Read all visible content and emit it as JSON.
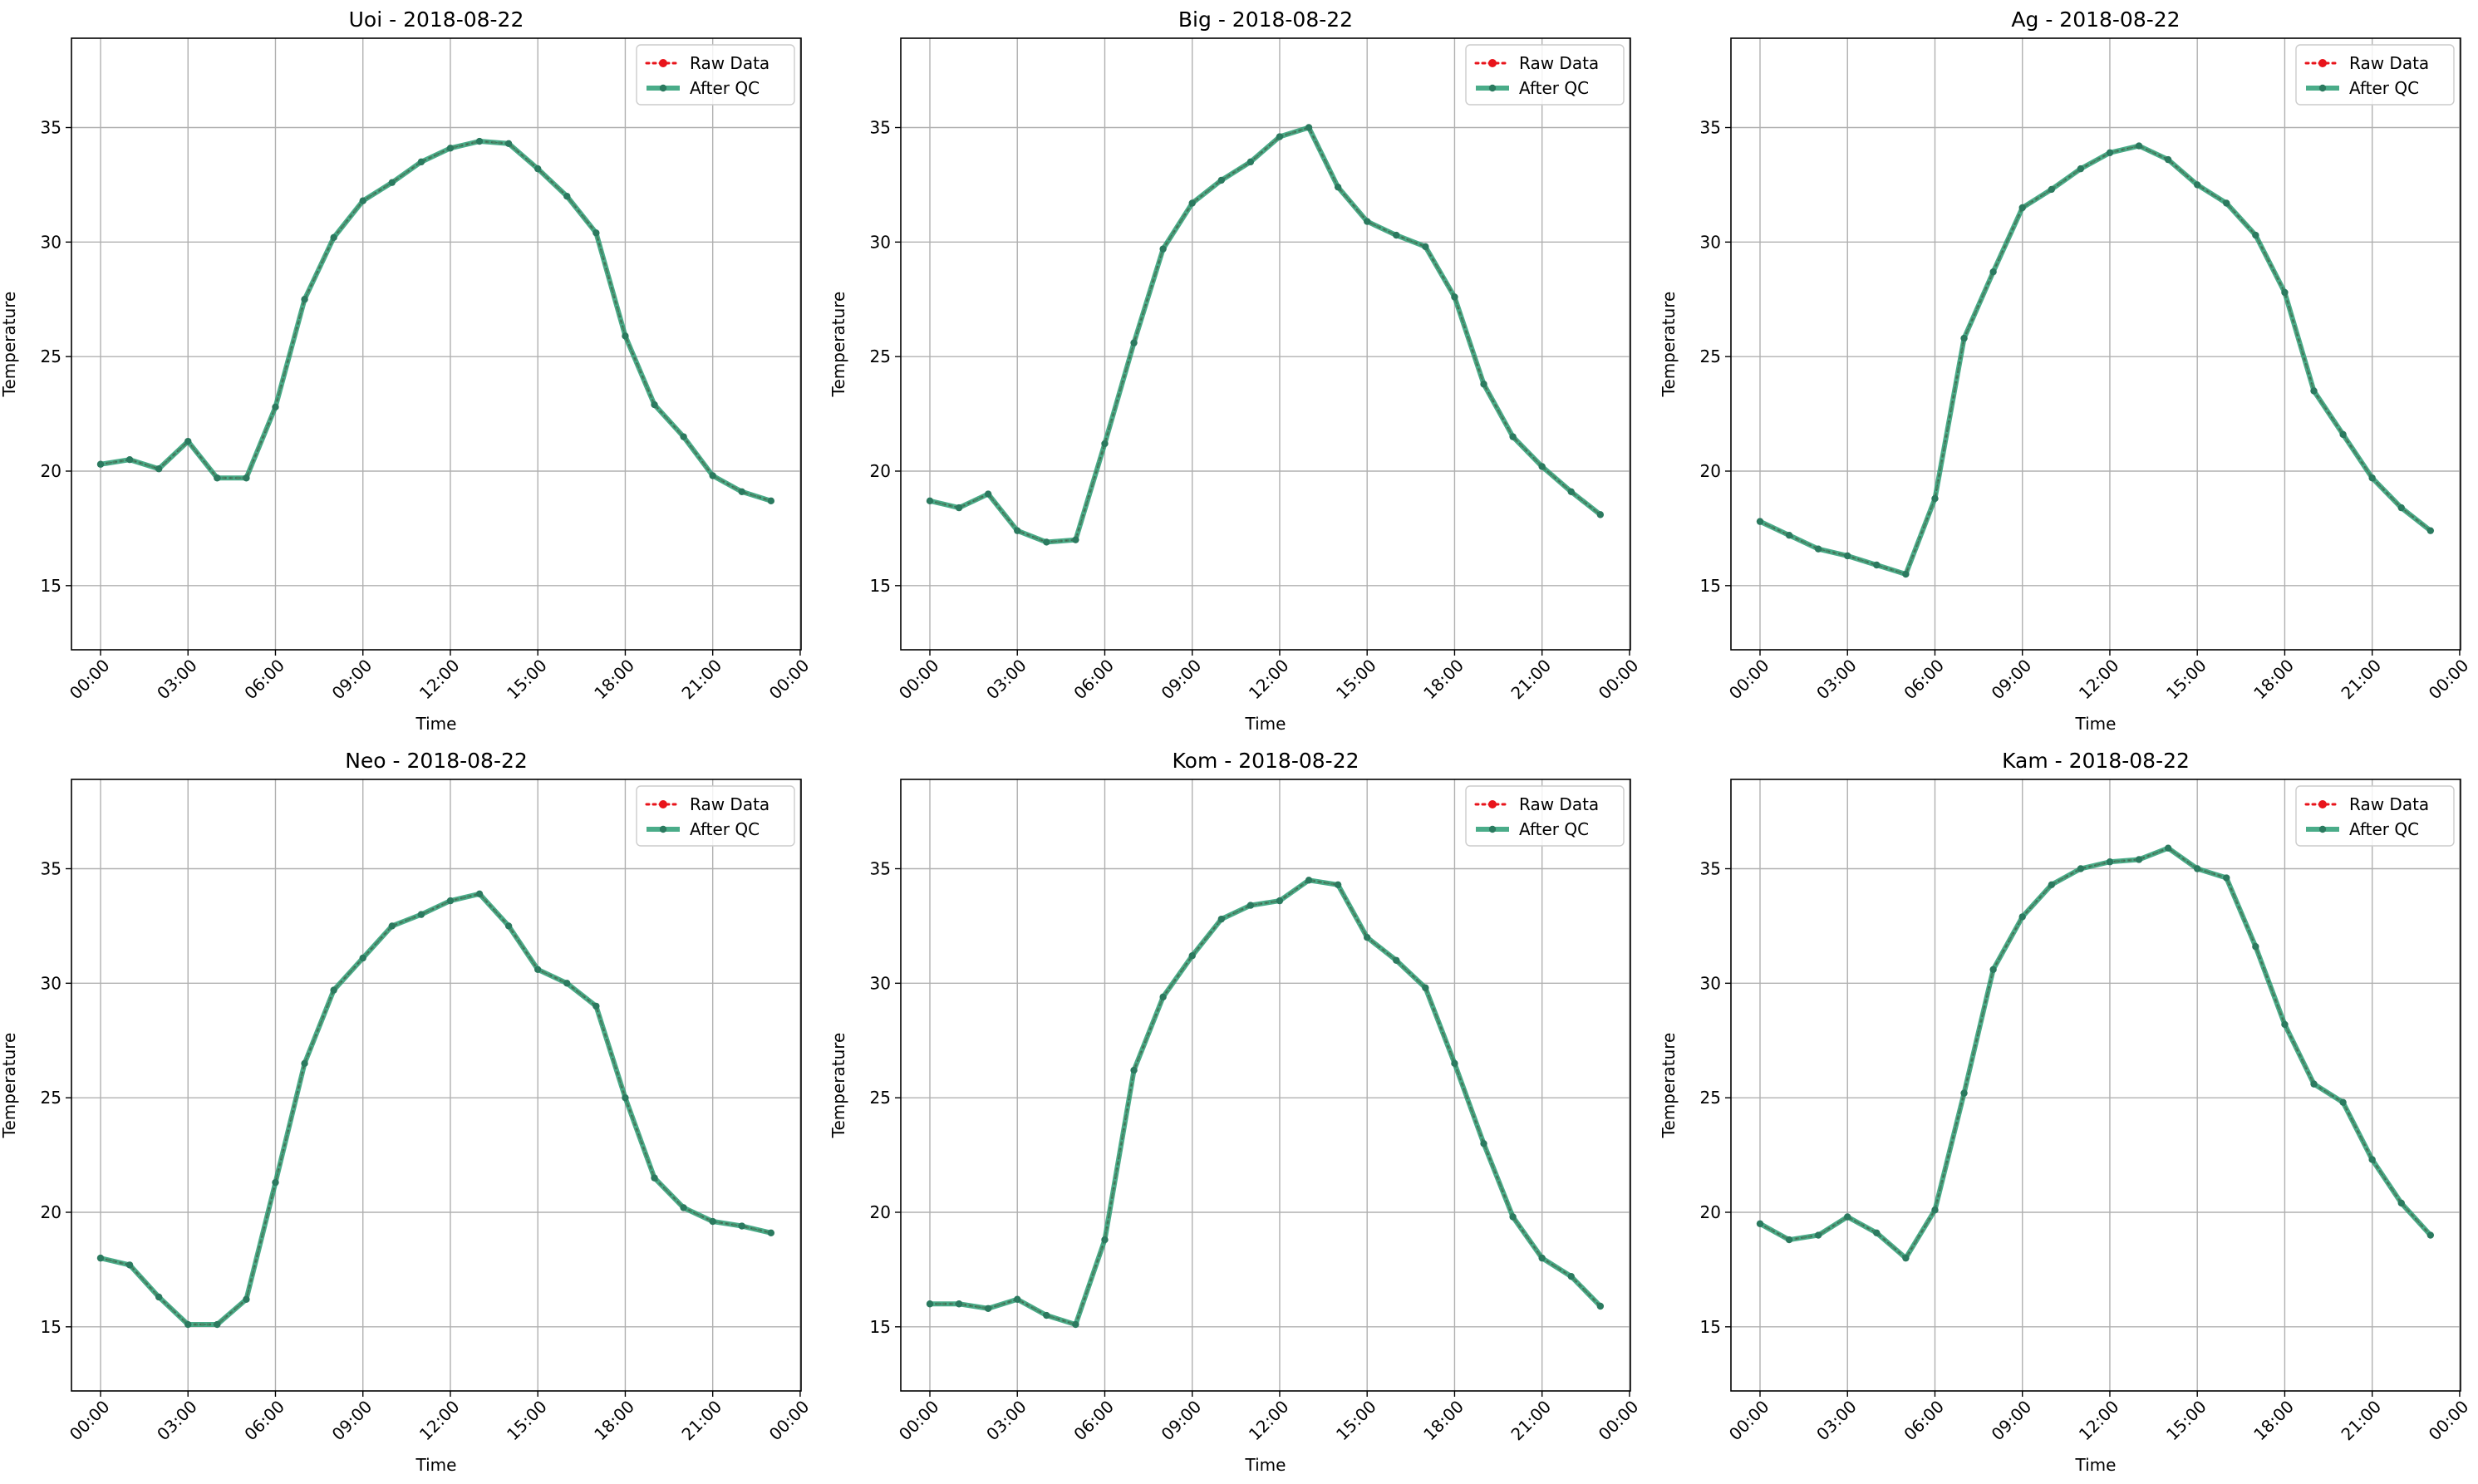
{
  "figure": {
    "legend_labels": [
      "Raw Data",
      "After QC"
    ]
  },
  "colors": {
    "raw": "#e8141b",
    "qc": "#2a9d74",
    "grid": "#b0b0b0"
  },
  "chart_data": [
    {
      "type": "line",
      "title": "Uoi - 2018-08-22",
      "xlabel": "Time",
      "ylabel": "Temperature",
      "x": [
        "00:00",
        "01:00",
        "02:00",
        "03:00",
        "04:00",
        "05:00",
        "06:00",
        "07:00",
        "08:00",
        "09:00",
        "10:00",
        "11:00",
        "12:00",
        "13:00",
        "14:00",
        "15:00",
        "16:00",
        "17:00",
        "18:00",
        "19:00",
        "20:00",
        "21:00",
        "22:00",
        "23:00"
      ],
      "xticks": [
        "00:00",
        "03:00",
        "06:00",
        "09:00",
        "12:00",
        "15:00",
        "18:00",
        "21:00",
        "00:00"
      ],
      "yticks": [
        15,
        20,
        25,
        30,
        35
      ],
      "ylim": [
        12.2,
        38.9
      ],
      "grid": true,
      "legend_position": "top-right",
      "series": [
        {
          "name": "Raw Data",
          "values": [
            20.3,
            20.5,
            20.1,
            21.3,
            19.7,
            19.7,
            22.8,
            27.5,
            30.2,
            31.8,
            32.6,
            33.5,
            34.1,
            34.4,
            34.3,
            33.2,
            32.0,
            30.4,
            25.9,
            22.9,
            21.5,
            19.8,
            19.1,
            18.7
          ]
        },
        {
          "name": "After QC",
          "values": [
            20.3,
            20.5,
            20.1,
            21.3,
            19.7,
            19.7,
            22.8,
            27.5,
            30.2,
            31.8,
            32.6,
            33.5,
            34.1,
            34.4,
            34.3,
            33.2,
            32.0,
            30.4,
            25.9,
            22.9,
            21.5,
            19.8,
            19.1,
            18.7
          ]
        }
      ]
    },
    {
      "type": "line",
      "title": "Big - 2018-08-22",
      "xlabel": "Time",
      "ylabel": "Temperature",
      "x": [
        "00:00",
        "01:00",
        "02:00",
        "03:00",
        "04:00",
        "05:00",
        "06:00",
        "07:00",
        "08:00",
        "09:00",
        "10:00",
        "11:00",
        "12:00",
        "13:00",
        "14:00",
        "15:00",
        "16:00",
        "17:00",
        "18:00",
        "19:00",
        "20:00",
        "21:00",
        "22:00",
        "23:00"
      ],
      "xticks": [
        "00:00",
        "03:00",
        "06:00",
        "09:00",
        "12:00",
        "15:00",
        "18:00",
        "21:00",
        "00:00"
      ],
      "yticks": [
        15,
        20,
        25,
        30,
        35
      ],
      "ylim": [
        12.2,
        38.9
      ],
      "grid": true,
      "legend_position": "top-right",
      "series": [
        {
          "name": "Raw Data",
          "values": [
            18.7,
            18.4,
            19.0,
            17.4,
            16.9,
            17.0,
            21.2,
            25.6,
            29.7,
            31.7,
            32.7,
            33.5,
            34.6,
            35.0,
            32.4,
            30.9,
            30.3,
            29.8,
            27.6,
            23.8,
            21.5,
            20.2,
            19.1,
            18.1
          ]
        },
        {
          "name": "After QC",
          "values": [
            18.7,
            18.4,
            19.0,
            17.4,
            16.9,
            17.0,
            21.2,
            25.6,
            29.7,
            31.7,
            32.7,
            33.5,
            34.6,
            35.0,
            32.4,
            30.9,
            30.3,
            29.8,
            27.6,
            23.8,
            21.5,
            20.2,
            19.1,
            18.1
          ]
        }
      ]
    },
    {
      "type": "line",
      "title": "Ag - 2018-08-22",
      "xlabel": "Time",
      "ylabel": "Temperature",
      "x": [
        "00:00",
        "01:00",
        "02:00",
        "03:00",
        "04:00",
        "05:00",
        "06:00",
        "07:00",
        "08:00",
        "09:00",
        "10:00",
        "11:00",
        "12:00",
        "13:00",
        "14:00",
        "15:00",
        "16:00",
        "17:00",
        "18:00",
        "19:00",
        "20:00",
        "21:00",
        "22:00",
        "23:00"
      ],
      "xticks": [
        "00:00",
        "03:00",
        "06:00",
        "09:00",
        "12:00",
        "15:00",
        "18:00",
        "21:00",
        "00:00"
      ],
      "yticks": [
        15,
        20,
        25,
        30,
        35
      ],
      "ylim": [
        12.2,
        38.9
      ],
      "grid": true,
      "legend_position": "top-right",
      "series": [
        {
          "name": "Raw Data",
          "values": [
            17.8,
            17.2,
            16.6,
            16.3,
            15.9,
            15.5,
            18.8,
            25.8,
            28.7,
            31.5,
            32.3,
            33.2,
            33.9,
            34.2,
            33.6,
            32.5,
            31.7,
            30.3,
            27.8,
            23.5,
            21.6,
            19.7,
            18.4,
            17.4
          ]
        },
        {
          "name": "After QC",
          "values": [
            17.8,
            17.2,
            16.6,
            16.3,
            15.9,
            15.5,
            18.8,
            25.8,
            28.7,
            31.5,
            32.3,
            33.2,
            33.9,
            34.2,
            33.6,
            32.5,
            31.7,
            30.3,
            27.8,
            23.5,
            21.6,
            19.7,
            18.4,
            17.4
          ]
        }
      ]
    },
    {
      "type": "line",
      "title": "Neo - 2018-08-22",
      "xlabel": "Time",
      "ylabel": "Temperature",
      "x": [
        "00:00",
        "01:00",
        "02:00",
        "03:00",
        "04:00",
        "05:00",
        "06:00",
        "07:00",
        "08:00",
        "09:00",
        "10:00",
        "11:00",
        "12:00",
        "13:00",
        "14:00",
        "15:00",
        "16:00",
        "17:00",
        "18:00",
        "19:00",
        "20:00",
        "21:00",
        "22:00",
        "23:00"
      ],
      "xticks": [
        "00:00",
        "03:00",
        "06:00",
        "09:00",
        "12:00",
        "15:00",
        "18:00",
        "21:00",
        "00:00"
      ],
      "yticks": [
        15,
        20,
        25,
        30,
        35
      ],
      "ylim": [
        12.2,
        38.9
      ],
      "grid": true,
      "legend_position": "top-right",
      "series": [
        {
          "name": "Raw Data",
          "values": [
            18.0,
            17.7,
            16.3,
            15.1,
            15.1,
            16.2,
            21.3,
            26.5,
            29.7,
            31.1,
            32.5,
            33.0,
            33.6,
            33.9,
            32.5,
            30.6,
            30.0,
            29.0,
            25.0,
            21.5,
            20.2,
            19.6,
            19.4,
            19.1
          ]
        },
        {
          "name": "After QC",
          "values": [
            18.0,
            17.7,
            16.3,
            15.1,
            15.1,
            16.2,
            21.3,
            26.5,
            29.7,
            31.1,
            32.5,
            33.0,
            33.6,
            33.9,
            32.5,
            30.6,
            30.0,
            29.0,
            25.0,
            21.5,
            20.2,
            19.6,
            19.4,
            19.1
          ]
        }
      ]
    },
    {
      "type": "line",
      "title": "Kom - 2018-08-22",
      "xlabel": "Time",
      "ylabel": "Temperature",
      "x": [
        "00:00",
        "01:00",
        "02:00",
        "03:00",
        "04:00",
        "05:00",
        "06:00",
        "07:00",
        "08:00",
        "09:00",
        "10:00",
        "11:00",
        "12:00",
        "13:00",
        "14:00",
        "15:00",
        "16:00",
        "17:00",
        "18:00",
        "19:00",
        "20:00",
        "21:00",
        "22:00",
        "23:00"
      ],
      "xticks": [
        "00:00",
        "03:00",
        "06:00",
        "09:00",
        "12:00",
        "15:00",
        "18:00",
        "21:00",
        "00:00"
      ],
      "yticks": [
        15,
        20,
        25,
        30,
        35
      ],
      "ylim": [
        12.2,
        38.9
      ],
      "grid": true,
      "legend_position": "top-right",
      "series": [
        {
          "name": "Raw Data",
          "values": [
            16.0,
            16.0,
            15.8,
            16.2,
            15.5,
            15.1,
            18.8,
            26.2,
            29.4,
            31.2,
            32.8,
            33.4,
            33.6,
            34.5,
            34.3,
            32.0,
            31.0,
            29.8,
            26.5,
            23.0,
            19.8,
            18.0,
            17.2,
            15.9
          ]
        },
        {
          "name": "After QC",
          "values": [
            16.0,
            16.0,
            15.8,
            16.2,
            15.5,
            15.1,
            18.8,
            26.2,
            29.4,
            31.2,
            32.8,
            33.4,
            33.6,
            34.5,
            34.3,
            32.0,
            31.0,
            29.8,
            26.5,
            23.0,
            19.8,
            18.0,
            17.2,
            15.9
          ]
        }
      ]
    },
    {
      "type": "line",
      "title": "Kam - 2018-08-22",
      "xlabel": "Time",
      "ylabel": "Temperature",
      "x": [
        "00:00",
        "01:00",
        "02:00",
        "03:00",
        "04:00",
        "05:00",
        "06:00",
        "07:00",
        "08:00",
        "09:00",
        "10:00",
        "11:00",
        "12:00",
        "13:00",
        "14:00",
        "15:00",
        "16:00",
        "17:00",
        "18:00",
        "19:00",
        "20:00",
        "21:00",
        "22:00",
        "23:00"
      ],
      "xticks": [
        "00:00",
        "03:00",
        "06:00",
        "09:00",
        "12:00",
        "15:00",
        "18:00",
        "21:00",
        "00:00"
      ],
      "yticks": [
        15,
        20,
        25,
        30,
        35
      ],
      "ylim": [
        12.2,
        38.9
      ],
      "grid": true,
      "legend_position": "top-right",
      "series": [
        {
          "name": "Raw Data",
          "values": [
            19.5,
            18.8,
            19.0,
            19.8,
            19.1,
            18.0,
            20.1,
            25.2,
            30.6,
            32.9,
            34.3,
            35.0,
            35.3,
            35.4,
            35.9,
            35.0,
            34.6,
            31.6,
            28.2,
            25.6,
            24.8,
            22.3,
            20.4,
            19.0
          ]
        },
        {
          "name": "After QC",
          "values": [
            19.5,
            18.8,
            19.0,
            19.8,
            19.1,
            18.0,
            20.1,
            25.2,
            30.6,
            32.9,
            34.3,
            35.0,
            35.3,
            35.4,
            35.9,
            35.0,
            34.6,
            31.6,
            28.2,
            25.6,
            24.8,
            22.3,
            20.4,
            19.0
          ]
        }
      ]
    }
  ]
}
